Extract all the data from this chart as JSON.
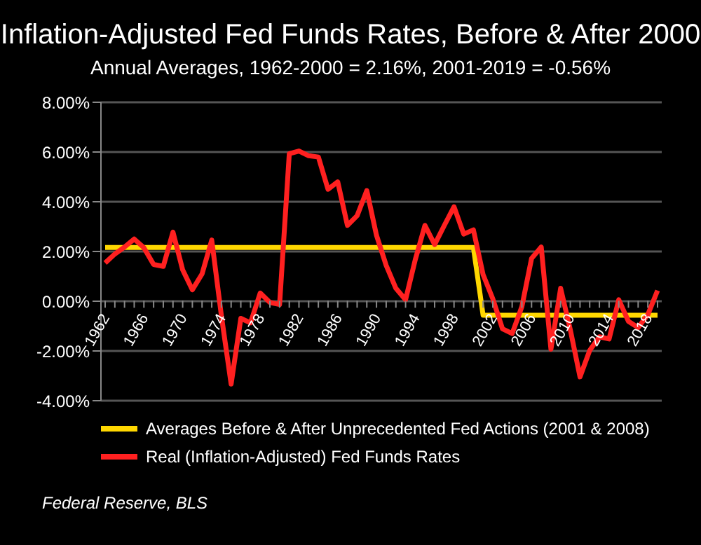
{
  "chart_data": {
    "type": "line",
    "title": "Inflation-Adjusted Fed Funds Rates, Before & After 2000",
    "subtitle": "Annual Averages, 1962-2000 = 2.16%, 2001-2019 = -0.56%",
    "categories": [
      "1962",
      null,
      null,
      null,
      "1966",
      null,
      null,
      null,
      "1970",
      null,
      null,
      null,
      "1974",
      null,
      null,
      null,
      "1978",
      null,
      null,
      null,
      "1982",
      null,
      null,
      null,
      "1986",
      null,
      null,
      null,
      "1990",
      null,
      null,
      null,
      "1994",
      null,
      null,
      null,
      "1998",
      null,
      null,
      null,
      "2002",
      null,
      null,
      null,
      "2006",
      null,
      null,
      null,
      "2010",
      null,
      null,
      null,
      "2014",
      null,
      null,
      null,
      "2018",
      null
    ],
    "series": [
      {
        "name": "Averages Before & After Unprecedented Fed Actions (2001 & 2008)",
        "color": "#ffd700",
        "values": [
          2.16,
          2.16,
          2.16,
          2.16,
          2.16,
          2.16,
          2.16,
          2.16,
          2.16,
          2.16,
          2.16,
          2.16,
          2.16,
          2.16,
          2.16,
          2.16,
          2.16,
          2.16,
          2.16,
          2.16,
          2.16,
          2.16,
          2.16,
          2.16,
          2.16,
          2.16,
          2.16,
          2.16,
          2.16,
          2.16,
          2.16,
          2.16,
          2.16,
          2.16,
          2.16,
          2.16,
          2.16,
          2.16,
          2.16,
          -0.56,
          -0.56,
          -0.56,
          -0.56,
          -0.56,
          -0.56,
          -0.56,
          -0.56,
          -0.56,
          -0.56,
          -0.56,
          -0.56,
          -0.56,
          -0.56,
          -0.56,
          -0.56,
          -0.56,
          -0.56,
          -0.56
        ]
      },
      {
        "name": "Real (Inflation-Adjusted) Fed Funds Rates",
        "color": "#ff2020",
        "values": [
          1.54,
          1.9,
          2.18,
          2.5,
          2.15,
          1.48,
          1.4,
          2.78,
          1.26,
          0.46,
          1.1,
          2.46,
          -0.6,
          -3.33,
          -0.69,
          -0.87,
          0.33,
          -0.05,
          -0.13,
          5.93,
          6.04,
          5.85,
          5.8,
          4.5,
          4.8,
          3.05,
          3.44,
          4.45,
          2.65,
          1.44,
          0.52,
          0.06,
          1.67,
          3.05,
          2.28,
          3.05,
          3.8,
          2.7,
          2.87,
          1.07,
          0.1,
          -1.11,
          -1.3,
          -0.22,
          1.72,
          2.18,
          -1.93,
          0.52,
          -1.15,
          -3.04,
          -1.98,
          -1.43,
          -1.52,
          0.06,
          -0.81,
          -1.06,
          -0.54,
          0.43
        ]
      }
    ],
    "ylim": [
      -4,
      8
    ],
    "yticks": [
      {
        "value": -4,
        "label": "-4.00%"
      },
      {
        "value": -2,
        "label": "-2.00%"
      },
      {
        "value": 0,
        "label": "0.00%"
      },
      {
        "value": 2,
        "label": "2.00%"
      },
      {
        "value": 4,
        "label": "4.00%"
      },
      {
        "value": 6,
        "label": "6.00%"
      },
      {
        "value": 8,
        "label": "8.00%"
      }
    ],
    "grid": "y",
    "legend": "bottom",
    "marker": "none",
    "line_style": "solid",
    "annotations": [
      "Federal Reserve, BLS"
    ]
  }
}
